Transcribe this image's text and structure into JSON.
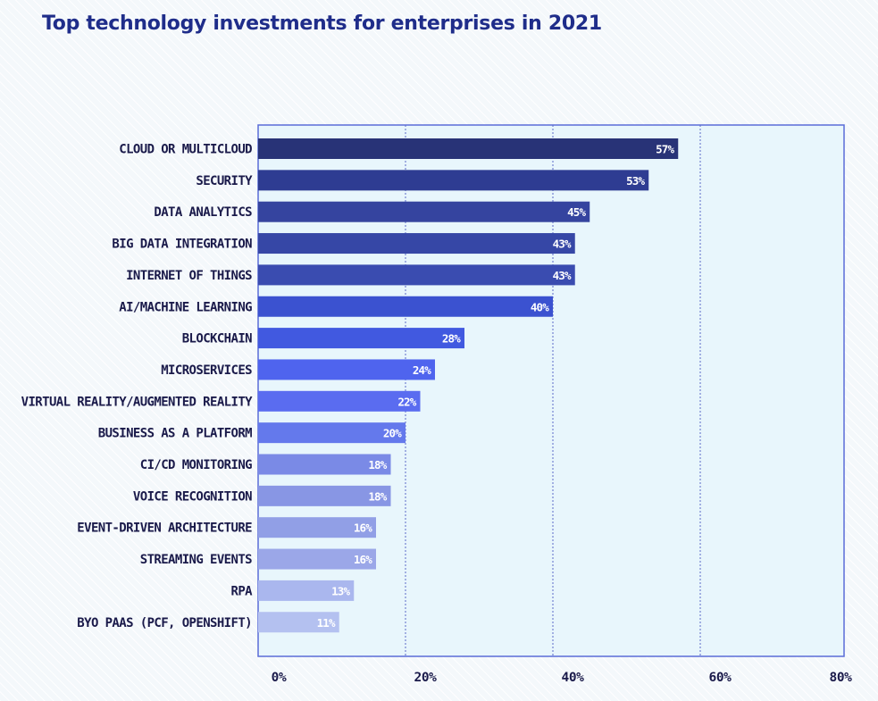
{
  "chart_data": {
    "type": "bar",
    "orientation": "horizontal",
    "title": "Top technology investments for enterprises in 2021",
    "categories": [
      "CLOUD OR MULTICLOUD",
      "SECURITY",
      "DATA ANALYTICS",
      "BIG DATA INTEGRATION",
      "INTERNET OF THINGS",
      "AI/MACHINE LEARNING",
      "BLOCKCHAIN",
      "MICROSERVICES",
      "VIRTUAL REALITY/AUGMENTED REALITY",
      "BUSINESS AS A PLATFORM",
      "CI/CD MONITORING",
      "VOICE RECOGNITION",
      "EVENT-DRIVEN ARCHITECTURE",
      "STREAMING EVENTS",
      "RPA",
      "BYO PAAS (PCF, OPENSHIFT)"
    ],
    "values": [
      57,
      53,
      45,
      43,
      43,
      40,
      28,
      24,
      22,
      20,
      18,
      18,
      16,
      16,
      13,
      11
    ],
    "value_labels": [
      "57%",
      "53%",
      "45%",
      "43%",
      "43%",
      "40%",
      "28%",
      "24%",
      "22%",
      "20%",
      "18%",
      "18%",
      "16%",
      "16%",
      "13%",
      "11%"
    ],
    "xticks": [
      "0%",
      "20%",
      "40%",
      "60%",
      "80%"
    ],
    "xlim": [
      0,
      80
    ],
    "grid": true,
    "colors": {
      "bar_gradient": [
        "#283377",
        "#2e3c92",
        "#35449f",
        "#3647a6",
        "#3a4cb0",
        "#3b52d0",
        "#4159e0",
        "#4f64ee",
        "#5a6cf0",
        "#6479ec",
        "#7a8ae6",
        "#8896e4",
        "#919fe6",
        "#9ba7e8",
        "#aab7ee",
        "#b4c1f0"
      ],
      "plot_background": "#e8f6fc",
      "plot_border": "#5a6cd8",
      "title": "#1f2d8a",
      "text": "#1a1a4a"
    }
  }
}
